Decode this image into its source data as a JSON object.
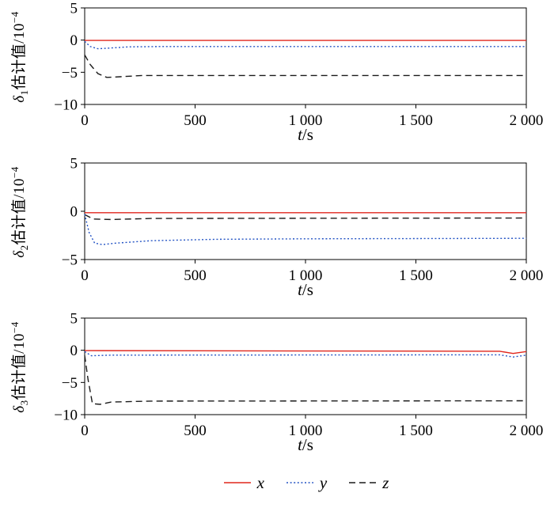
{
  "legend": {
    "items": [
      {
        "label": "x",
        "color": "#e0261c",
        "dash": ""
      },
      {
        "label": "y",
        "color": "#2353c4",
        "dash": "2 2.6"
      },
      {
        "label": "z",
        "color": "#1a1a1a",
        "dash": "8 5"
      }
    ]
  },
  "chart_data": [
    {
      "type": "line",
      "xlabel": {
        "it": "t",
        "rest": "/s"
      },
      "ylabel": {
        "sym": "δ",
        "sub": "1",
        "text": "估计值/10",
        "sup": "−4"
      },
      "xlim": [
        0,
        2000
      ],
      "ylim": [
        -10,
        5
      ],
      "xticks": [
        {
          "v": 0,
          "label": "0"
        },
        {
          "v": 500,
          "label": "500"
        },
        {
          "v": 1000,
          "label": "1 000"
        },
        {
          "v": 1500,
          "label": "1 500"
        },
        {
          "v": 2000,
          "label": "2 000"
        }
      ],
      "yticks": [
        {
          "v": 5,
          "label": "5"
        },
        {
          "v": 0,
          "label": "0"
        },
        {
          "v": -5,
          "label": "−5"
        },
        {
          "v": -10,
          "label": "−10"
        }
      ],
      "series": [
        {
          "name": "z",
          "color": "#1a1a1a",
          "dash": "8 5",
          "points": [
            [
              0,
              -2.3
            ],
            [
              25,
              -3.8
            ],
            [
              60,
              -5.2
            ],
            [
              100,
              -5.8
            ],
            [
              160,
              -5.7
            ],
            [
              260,
              -5.5
            ],
            [
              2000,
              -5.5
            ]
          ]
        },
        {
          "name": "y",
          "color": "#2353c4",
          "dash": "2 2.6",
          "points": [
            [
              0,
              -0.2
            ],
            [
              25,
              -1.0
            ],
            [
              60,
              -1.35
            ],
            [
              110,
              -1.25
            ],
            [
              200,
              -1.05
            ],
            [
              350,
              -1.0
            ],
            [
              2000,
              -1.0
            ]
          ]
        },
        {
          "name": "x",
          "color": "#e0261c",
          "dash": "",
          "points": [
            [
              0,
              -0.05
            ],
            [
              2000,
              -0.05
            ]
          ]
        }
      ]
    },
    {
      "type": "line",
      "xlabel": {
        "it": "t",
        "rest": "/s"
      },
      "ylabel": {
        "sym": "δ",
        "sub": "2",
        "text": "估计值/10",
        "sup": "−4"
      },
      "xlim": [
        0,
        2000
      ],
      "ylim": [
        -5,
        5
      ],
      "xticks": [
        {
          "v": 0,
          "label": "0"
        },
        {
          "v": 500,
          "label": "500"
        },
        {
          "v": 1000,
          "label": "1 000"
        },
        {
          "v": 1500,
          "label": "1 500"
        },
        {
          "v": 2000,
          "label": "2 000"
        }
      ],
      "yticks": [
        {
          "v": 5,
          "label": "5"
        },
        {
          "v": 0,
          "label": "0"
        },
        {
          "v": -5,
          "label": "−5"
        }
      ],
      "series": [
        {
          "name": "z",
          "color": "#1a1a1a",
          "dash": "8 5",
          "points": [
            [
              0,
              -0.35
            ],
            [
              40,
              -0.8
            ],
            [
              120,
              -0.85
            ],
            [
              300,
              -0.75
            ],
            [
              2000,
              -0.7
            ]
          ]
        },
        {
          "name": "y",
          "color": "#2353c4",
          "dash": "2 2.6",
          "points": [
            [
              0,
              -0.3
            ],
            [
              20,
              -2.2
            ],
            [
              45,
              -3.3
            ],
            [
              80,
              -3.45
            ],
            [
              140,
              -3.3
            ],
            [
              300,
              -3.05
            ],
            [
              600,
              -2.9
            ],
            [
              1000,
              -2.85
            ],
            [
              2000,
              -2.8
            ]
          ]
        },
        {
          "name": "x",
          "color": "#e0261c",
          "dash": "",
          "points": [
            [
              0,
              -0.15
            ],
            [
              2000,
              -0.15
            ]
          ]
        }
      ]
    },
    {
      "type": "line",
      "xlabel": {
        "it": "t",
        "rest": "/s"
      },
      "ylabel": {
        "sym": "δ",
        "sub": "3",
        "text": "估计值/10",
        "sup": "−4"
      },
      "xlim": [
        0,
        2000
      ],
      "ylim": [
        -10,
        5
      ],
      "xticks": [
        {
          "v": 0,
          "label": "0"
        },
        {
          "v": 500,
          "label": "500"
        },
        {
          "v": 1000,
          "label": "1 000"
        },
        {
          "v": 1500,
          "label": "1 500"
        },
        {
          "v": 2000,
          "label": "2 000"
        }
      ],
      "yticks": [
        {
          "v": 5,
          "label": "5"
        },
        {
          "v": 0,
          "label": "0"
        },
        {
          "v": -5,
          "label": "−5"
        },
        {
          "v": -10,
          "label": "−10"
        }
      ],
      "series": [
        {
          "name": "z",
          "color": "#1a1a1a",
          "dash": "8 5",
          "points": [
            [
              0,
              -0.8
            ],
            [
              15,
              -4.5
            ],
            [
              35,
              -8.3
            ],
            [
              70,
              -8.4
            ],
            [
              120,
              -8.05
            ],
            [
              300,
              -7.9
            ],
            [
              2000,
              -7.85
            ]
          ]
        },
        {
          "name": "y",
          "color": "#2353c4",
          "dash": "2 2.6",
          "points": [
            [
              0,
              -0.2
            ],
            [
              30,
              -0.85
            ],
            [
              120,
              -0.75
            ],
            [
              1880,
              -0.7
            ],
            [
              1940,
              -1.05
            ],
            [
              2000,
              -0.75
            ]
          ]
        },
        {
          "name": "x",
          "color": "#e0261c",
          "dash": "",
          "points": [
            [
              0,
              -0.05
            ],
            [
              1880,
              -0.15
            ],
            [
              1940,
              -0.5
            ],
            [
              2000,
              -0.2
            ]
          ]
        }
      ]
    }
  ]
}
